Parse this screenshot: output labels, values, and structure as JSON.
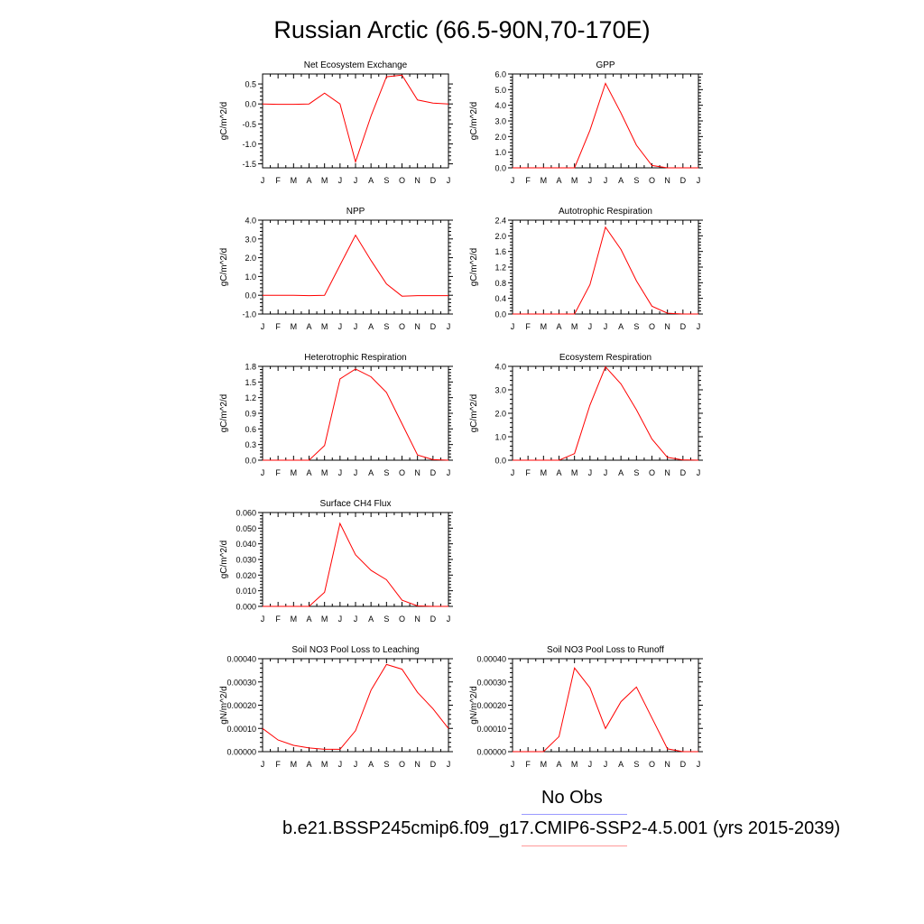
{
  "title": "Russian Arctic (66.5-90N,70-170E)",
  "months": [
    "J",
    "F",
    "M",
    "A",
    "M",
    "J",
    "J",
    "A",
    "S",
    "O",
    "N",
    "D",
    "J"
  ],
  "colors": {
    "line": "#ff0000",
    "axis": "#000000",
    "obs": "#9999ff",
    "model": "#ff9999"
  },
  "legend": {
    "obs_label": "No Obs",
    "model_label": "b.e21.BSSP245cmip6.f09_g17.CMIP6-SSP2-4.5.001 (yrs 2015-2039)"
  },
  "chart_data": [
    {
      "type": "line",
      "title": "Net Ecosystem Exchange",
      "ylabel": "gC/m^2/d",
      "ylim": [
        -1.6,
        0.75
      ],
      "yticks": [
        -1.5,
        -1.0,
        -0.5,
        0.0,
        0.5
      ],
      "yticklabels": [
        "-1.5",
        "-1.0",
        "-0.5",
        "0.0",
        "0.5"
      ],
      "categories": [
        "J",
        "F",
        "M",
        "A",
        "M",
        "J",
        "J",
        "A",
        "S",
        "O",
        "N",
        "D",
        "J"
      ],
      "values": [
        0.0,
        -0.01,
        -0.01,
        0.0,
        0.27,
        0.0,
        -1.45,
        -0.3,
        0.68,
        0.72,
        0.1,
        0.02,
        0.0
      ]
    },
    {
      "type": "line",
      "title": "GPP",
      "ylabel": "gC/m^2/d",
      "ylim": [
        0.0,
        6.0
      ],
      "yticks": [
        0,
        1,
        2,
        3,
        4,
        5,
        6
      ],
      "yticklabels": [
        "0.0",
        "1.0",
        "2.0",
        "3.0",
        "4.0",
        "5.0",
        "6.0"
      ],
      "categories": [
        "J",
        "F",
        "M",
        "A",
        "M",
        "J",
        "J",
        "A",
        "S",
        "O",
        "N",
        "D",
        "J"
      ],
      "values": [
        0.0,
        0.0,
        0.0,
        0.0,
        0.0,
        2.4,
        5.4,
        3.5,
        1.45,
        0.15,
        0.0,
        0.0,
        0.0
      ]
    },
    {
      "type": "line",
      "title": "NPP",
      "ylabel": "gC/m^2/d",
      "ylim": [
        -1.0,
        4.0
      ],
      "yticks": [
        -1,
        0,
        1,
        2,
        3,
        4
      ],
      "yticklabels": [
        "-1.0",
        "0.0",
        "1.0",
        "2.0",
        "3.0",
        "4.0"
      ],
      "categories": [
        "J",
        "F",
        "M",
        "A",
        "M",
        "J",
        "J",
        "A",
        "S",
        "O",
        "N",
        "D",
        "J"
      ],
      "values": [
        0.0,
        0.0,
        0.0,
        -0.02,
        0.0,
        1.6,
        3.2,
        1.85,
        0.6,
        -0.05,
        -0.02,
        -0.02,
        -0.02
      ]
    },
    {
      "type": "line",
      "title": "Autotrophic Respiration",
      "ylabel": "gC/m^2/d",
      "ylim": [
        0.0,
        2.4
      ],
      "yticks": [
        0,
        0.4,
        0.8,
        1.2,
        1.6,
        2.0,
        2.4
      ],
      "yticklabels": [
        "0.0",
        "0.4",
        "0.8",
        "1.2",
        "1.6",
        "2.0",
        "2.4"
      ],
      "categories": [
        "J",
        "F",
        "M",
        "A",
        "M",
        "J",
        "J",
        "A",
        "S",
        "O",
        "N",
        "D",
        "J"
      ],
      "values": [
        0.0,
        0.0,
        0.0,
        0.0,
        0.0,
        0.75,
        2.22,
        1.65,
        0.85,
        0.2,
        0.02,
        0.0,
        0.0
      ]
    },
    {
      "type": "line",
      "title": "Heterotrophic Respiration",
      "ylabel": "gC/m^2/d",
      "ylim": [
        0.0,
        1.8
      ],
      "yticks": [
        0,
        0.3,
        0.6,
        0.9,
        1.2,
        1.5,
        1.8
      ],
      "yticklabels": [
        "0.0",
        "0.3",
        "0.6",
        "0.9",
        "1.2",
        "1.5",
        "1.8"
      ],
      "categories": [
        "J",
        "F",
        "M",
        "A",
        "M",
        "J",
        "J",
        "A",
        "S",
        "O",
        "N",
        "D",
        "J"
      ],
      "values": [
        0.0,
        0.0,
        0.0,
        0.0,
        0.28,
        1.56,
        1.75,
        1.6,
        1.3,
        0.7,
        0.1,
        0.01,
        0.0
      ]
    },
    {
      "type": "line",
      "title": "Ecosystem Respiration",
      "ylabel": "gC/m^2/d",
      "ylim": [
        0.0,
        4.0
      ],
      "yticks": [
        0,
        1,
        2,
        3,
        4
      ],
      "yticklabels": [
        "0.0",
        "1.0",
        "2.0",
        "3.0",
        "4.0"
      ],
      "categories": [
        "J",
        "F",
        "M",
        "A",
        "M",
        "J",
        "J",
        "A",
        "S",
        "O",
        "N",
        "D",
        "J"
      ],
      "values": [
        0.0,
        0.0,
        0.0,
        0.0,
        0.28,
        2.35,
        3.98,
        3.25,
        2.15,
        0.9,
        0.12,
        0.01,
        0.0
      ]
    },
    {
      "type": "line",
      "title": "Surface CH4 Flux",
      "ylabel": "gC/m^2/d",
      "ylim": [
        0.0,
        0.06
      ],
      "yticks": [
        0,
        0.01,
        0.02,
        0.03,
        0.04,
        0.05,
        0.06
      ],
      "yticklabels": [
        "0.000",
        "0.010",
        "0.020",
        "0.030",
        "0.040",
        "0.050",
        "0.060"
      ],
      "categories": [
        "J",
        "F",
        "M",
        "A",
        "M",
        "J",
        "J",
        "A",
        "S",
        "O",
        "N",
        "D",
        "J"
      ],
      "values": [
        0.0,
        0.0,
        0.0,
        0.0,
        0.009,
        0.053,
        0.033,
        0.023,
        0.017,
        0.004,
        0.0003,
        0.0,
        0.0
      ]
    },
    {
      "type": "line",
      "title": "Soil NO3 Pool Loss to Leaching",
      "ylabel": "gN/m^2/d",
      "ylim": [
        0.0,
        0.0004
      ],
      "yticks": [
        0,
        0.0001,
        0.0002,
        0.0003,
        0.0004
      ],
      "yticklabels": [
        "0.00000",
        "0.00010",
        "0.00020",
        "0.00030",
        "0.00040"
      ],
      "categories": [
        "J",
        "F",
        "M",
        "A",
        "M",
        "J",
        "J",
        "A",
        "S",
        "O",
        "N",
        "D",
        "J"
      ],
      "values": [
        0.0001,
        5e-05,
        2.7e-05,
        1.6e-05,
        1e-05,
        1e-05,
        9e-05,
        0.000265,
        0.000375,
        0.000355,
        0.000255,
        0.000185,
        0.0001
      ]
    },
    {
      "type": "line",
      "title": "Soil NO3 Pool Loss to Runoff",
      "ylabel": "gN/m^2/d",
      "ylim": [
        0.0,
        0.0004
      ],
      "yticks": [
        0,
        0.0001,
        0.0002,
        0.0003,
        0.0004
      ],
      "yticklabels": [
        "0.00000",
        "0.00010",
        "0.00020",
        "0.00030",
        "0.00040"
      ],
      "categories": [
        "J",
        "F",
        "M",
        "A",
        "M",
        "J",
        "J",
        "A",
        "S",
        "O",
        "N",
        "D",
        "J"
      ],
      "values": [
        0.0,
        0.0,
        0.0,
        6.5e-05,
        0.00036,
        0.000275,
        0.0001,
        0.000215,
        0.000278,
        0.000145,
        1.2e-05,
        0.0,
        0.0
      ]
    }
  ]
}
